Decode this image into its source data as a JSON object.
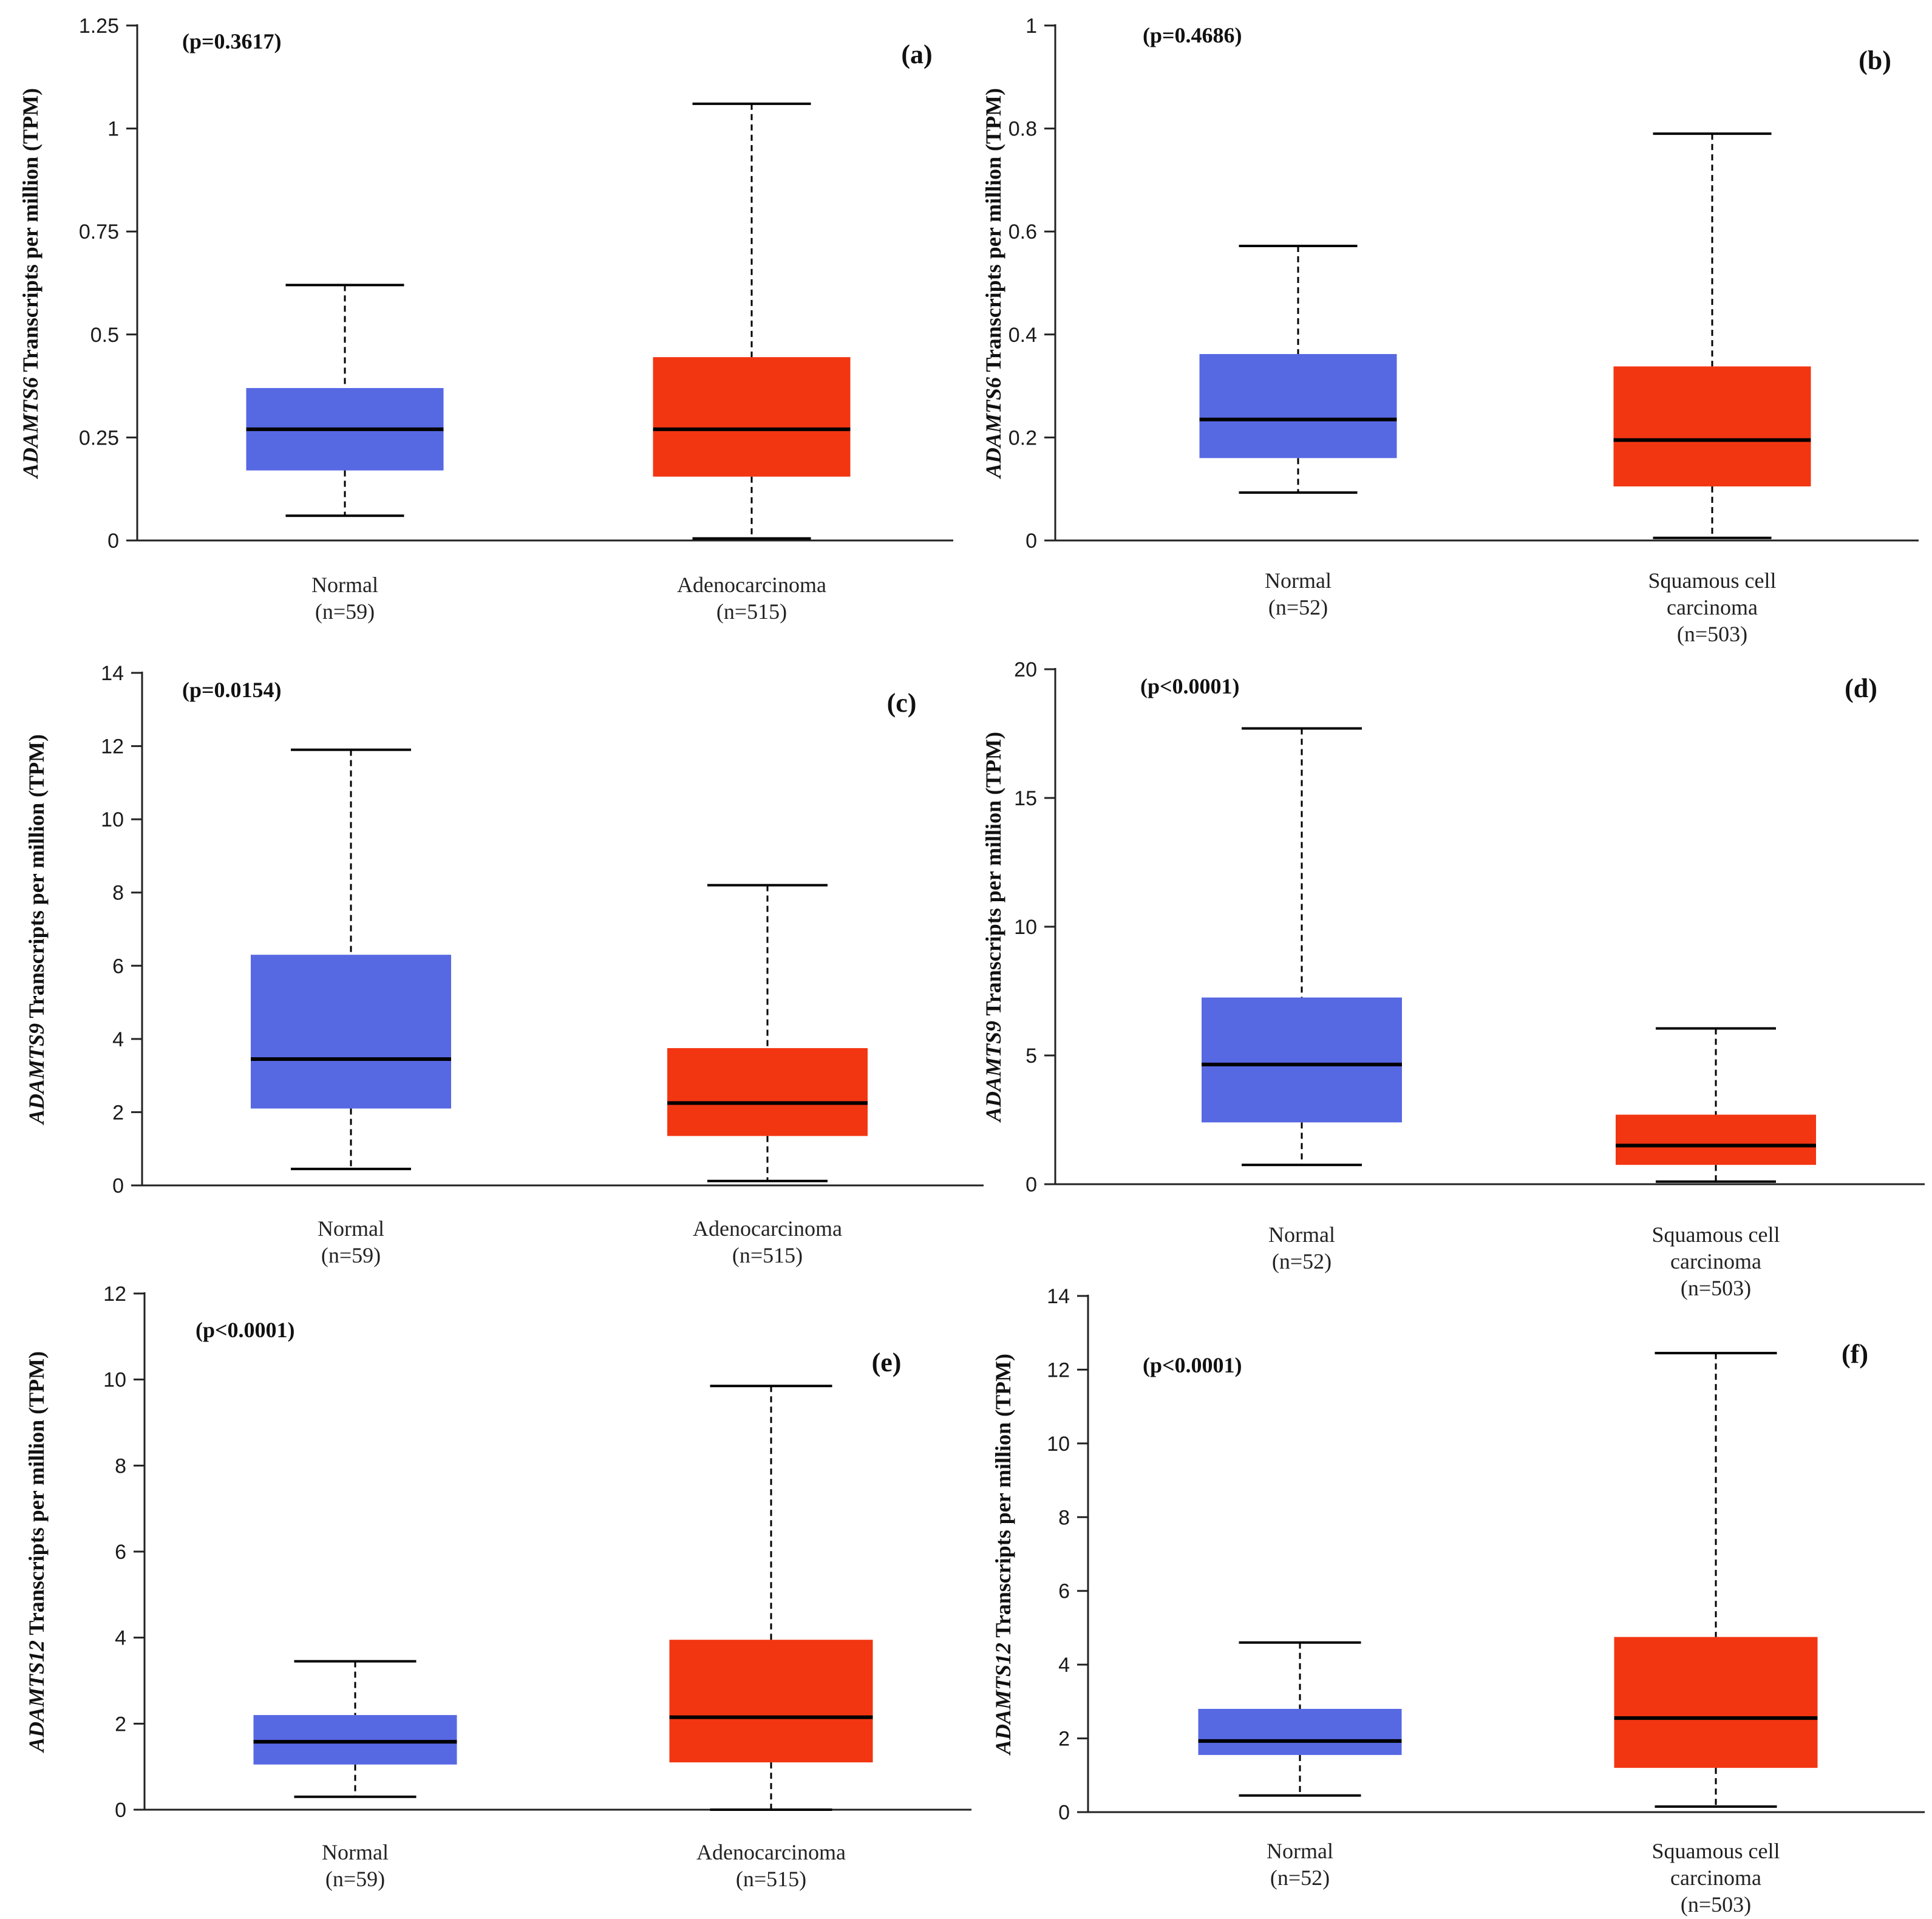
{
  "colors": {
    "normal": "#5768e3",
    "tumor": "#f23612",
    "median": "#000000",
    "axis": "#222222"
  },
  "chart_data": [
    {
      "type": "box",
      "panel": "(a)",
      "pvalue": "(p=0.3617)",
      "gene": "ADAMTS6",
      "ylabel_rest": " Transcripts per million (TPM)",
      "ylim": [
        0,
        1.25
      ],
      "yticks": [
        0,
        0.25,
        0.5,
        0.75,
        1,
        1.25
      ],
      "ytick_labels": [
        "0",
        "0.25",
        "0.5",
        "0.75",
        "1",
        "1.25"
      ],
      "groups": [
        {
          "name": "Normal",
          "label_lines": [
            "Normal",
            "(n=59)"
          ],
          "color_key": "normal",
          "min": 0.06,
          "q1": 0.17,
          "median": 0.27,
          "q3": 0.37,
          "max": 0.62
        },
        {
          "name": "Adenocarcinoma",
          "label_lines": [
            "Adenocarcinoma",
            "(n=515)"
          ],
          "color_key": "tumor",
          "min": 0.005,
          "q1": 0.155,
          "median": 0.27,
          "q3": 0.445,
          "max": 1.06
        }
      ]
    },
    {
      "type": "box",
      "panel": "(b)",
      "pvalue": "(p=0.4686)",
      "gene": "ADAMTS6",
      "ylabel_rest": " Transcripts per million (TPM)",
      "ylim": [
        0,
        1
      ],
      "yticks": [
        0,
        0.2,
        0.4,
        0.6,
        0.8,
        1
      ],
      "ytick_labels": [
        "0",
        "0.2",
        "0.4",
        "0.6",
        "0.8",
        "1"
      ],
      "groups": [
        {
          "name": "Normal",
          "label_lines": [
            "Normal",
            "(n=52)"
          ],
          "color_key": "normal",
          "min": 0.093,
          "q1": 0.16,
          "median": 0.235,
          "q3": 0.362,
          "max": 0.572
        },
        {
          "name": "Squamous cell carcinoma",
          "label_lines": [
            "Squamous cell",
            "carcinoma",
            "(n=503)"
          ],
          "color_key": "tumor",
          "min": 0.005,
          "q1": 0.105,
          "median": 0.195,
          "q3": 0.338,
          "max": 0.79
        }
      ]
    },
    {
      "type": "box",
      "panel": "(c)",
      "pvalue": "(p=0.0154)",
      "gene": "ADAMTS9",
      "ylabel_rest": " Transcripts per million (TPM)",
      "ylim": [
        0,
        14
      ],
      "yticks": [
        0,
        2,
        4,
        6,
        8,
        10,
        12,
        14
      ],
      "ytick_labels": [
        "0",
        "2",
        "4",
        "6",
        "8",
        "10",
        "12",
        "14"
      ],
      "groups": [
        {
          "name": "Normal",
          "label_lines": [
            "Normal",
            "(n=59)"
          ],
          "color_key": "normal",
          "min": 0.45,
          "q1": 2.1,
          "median": 3.45,
          "q3": 6.3,
          "max": 11.9
        },
        {
          "name": "Adenocarcinoma",
          "label_lines": [
            "Adenocarcinoma",
            "(n=515)"
          ],
          "color_key": "tumor",
          "min": 0.12,
          "q1": 1.35,
          "median": 2.25,
          "q3": 3.75,
          "max": 8.2
        }
      ]
    },
    {
      "type": "box",
      "panel": "(d)",
      "pvalue": "(p<0.0001)",
      "gene": "ADAMTS9",
      "ylabel_rest": " Transcripts per million (TPM)",
      "ylim": [
        0,
        20
      ],
      "yticks": [
        0,
        5,
        10,
        15,
        20
      ],
      "ytick_labels": [
        "0",
        "5",
        "10",
        "15",
        "20"
      ],
      "groups": [
        {
          "name": "Normal",
          "label_lines": [
            "Normal",
            "(n=52)"
          ],
          "color_key": "normal",
          "min": 0.75,
          "q1": 2.4,
          "median": 4.65,
          "q3": 7.25,
          "max": 17.7
        },
        {
          "name": "Squamous cell carcinoma",
          "label_lines": [
            "Squamous cell",
            "carcinoma",
            "(n=503)"
          ],
          "color_key": "tumor",
          "min": 0.1,
          "q1": 0.75,
          "median": 1.5,
          "q3": 2.7,
          "max": 6.05
        }
      ]
    },
    {
      "type": "box",
      "panel": "(e)",
      "pvalue": "(p<0.0001)",
      "gene": "ADAMTS12",
      "ylabel_rest": " Transcripts per million (TPM)",
      "ylim": [
        0,
        12
      ],
      "yticks": [
        0,
        2,
        4,
        6,
        8,
        10,
        12
      ],
      "ytick_labels": [
        "0",
        "2",
        "4",
        "6",
        "8",
        "10",
        "12"
      ],
      "groups": [
        {
          "name": "Normal",
          "label_lines": [
            "Normal",
            "(n=59)"
          ],
          "color_key": "normal",
          "min": 0.3,
          "q1": 1.05,
          "median": 1.58,
          "q3": 2.2,
          "max": 3.45
        },
        {
          "name": "Adenocarcinoma",
          "label_lines": [
            "Adenocarcinoma",
            "(n=515)"
          ],
          "color_key": "tumor",
          "min": 0.0,
          "q1": 1.1,
          "median": 2.15,
          "q3": 3.95,
          "max": 9.85
        }
      ]
    },
    {
      "type": "box",
      "panel": "(f)",
      "pvalue": "(p<0.0001)",
      "gene": "ADAMTS12",
      "ylabel_rest": " Transcripts per million (TPM)",
      "ylim": [
        0,
        14
      ],
      "yticks": [
        0,
        2,
        4,
        6,
        8,
        10,
        12,
        14
      ],
      "ytick_labels": [
        "0",
        "2",
        "4",
        "6",
        "8",
        "10",
        "12",
        "14"
      ],
      "groups": [
        {
          "name": "Normal",
          "label_lines": [
            "Normal",
            "(n=52)"
          ],
          "color_key": "normal",
          "min": 0.45,
          "q1": 1.55,
          "median": 1.93,
          "q3": 2.8,
          "max": 4.6
        },
        {
          "name": "Squamous cell carcinoma",
          "label_lines": [
            "Squamous cell",
            "carcinoma",
            "(n=503)"
          ],
          "color_key": "tumor",
          "min": 0.15,
          "q1": 1.2,
          "median": 2.55,
          "q3": 4.75,
          "max": 12.45
        }
      ]
    }
  ]
}
